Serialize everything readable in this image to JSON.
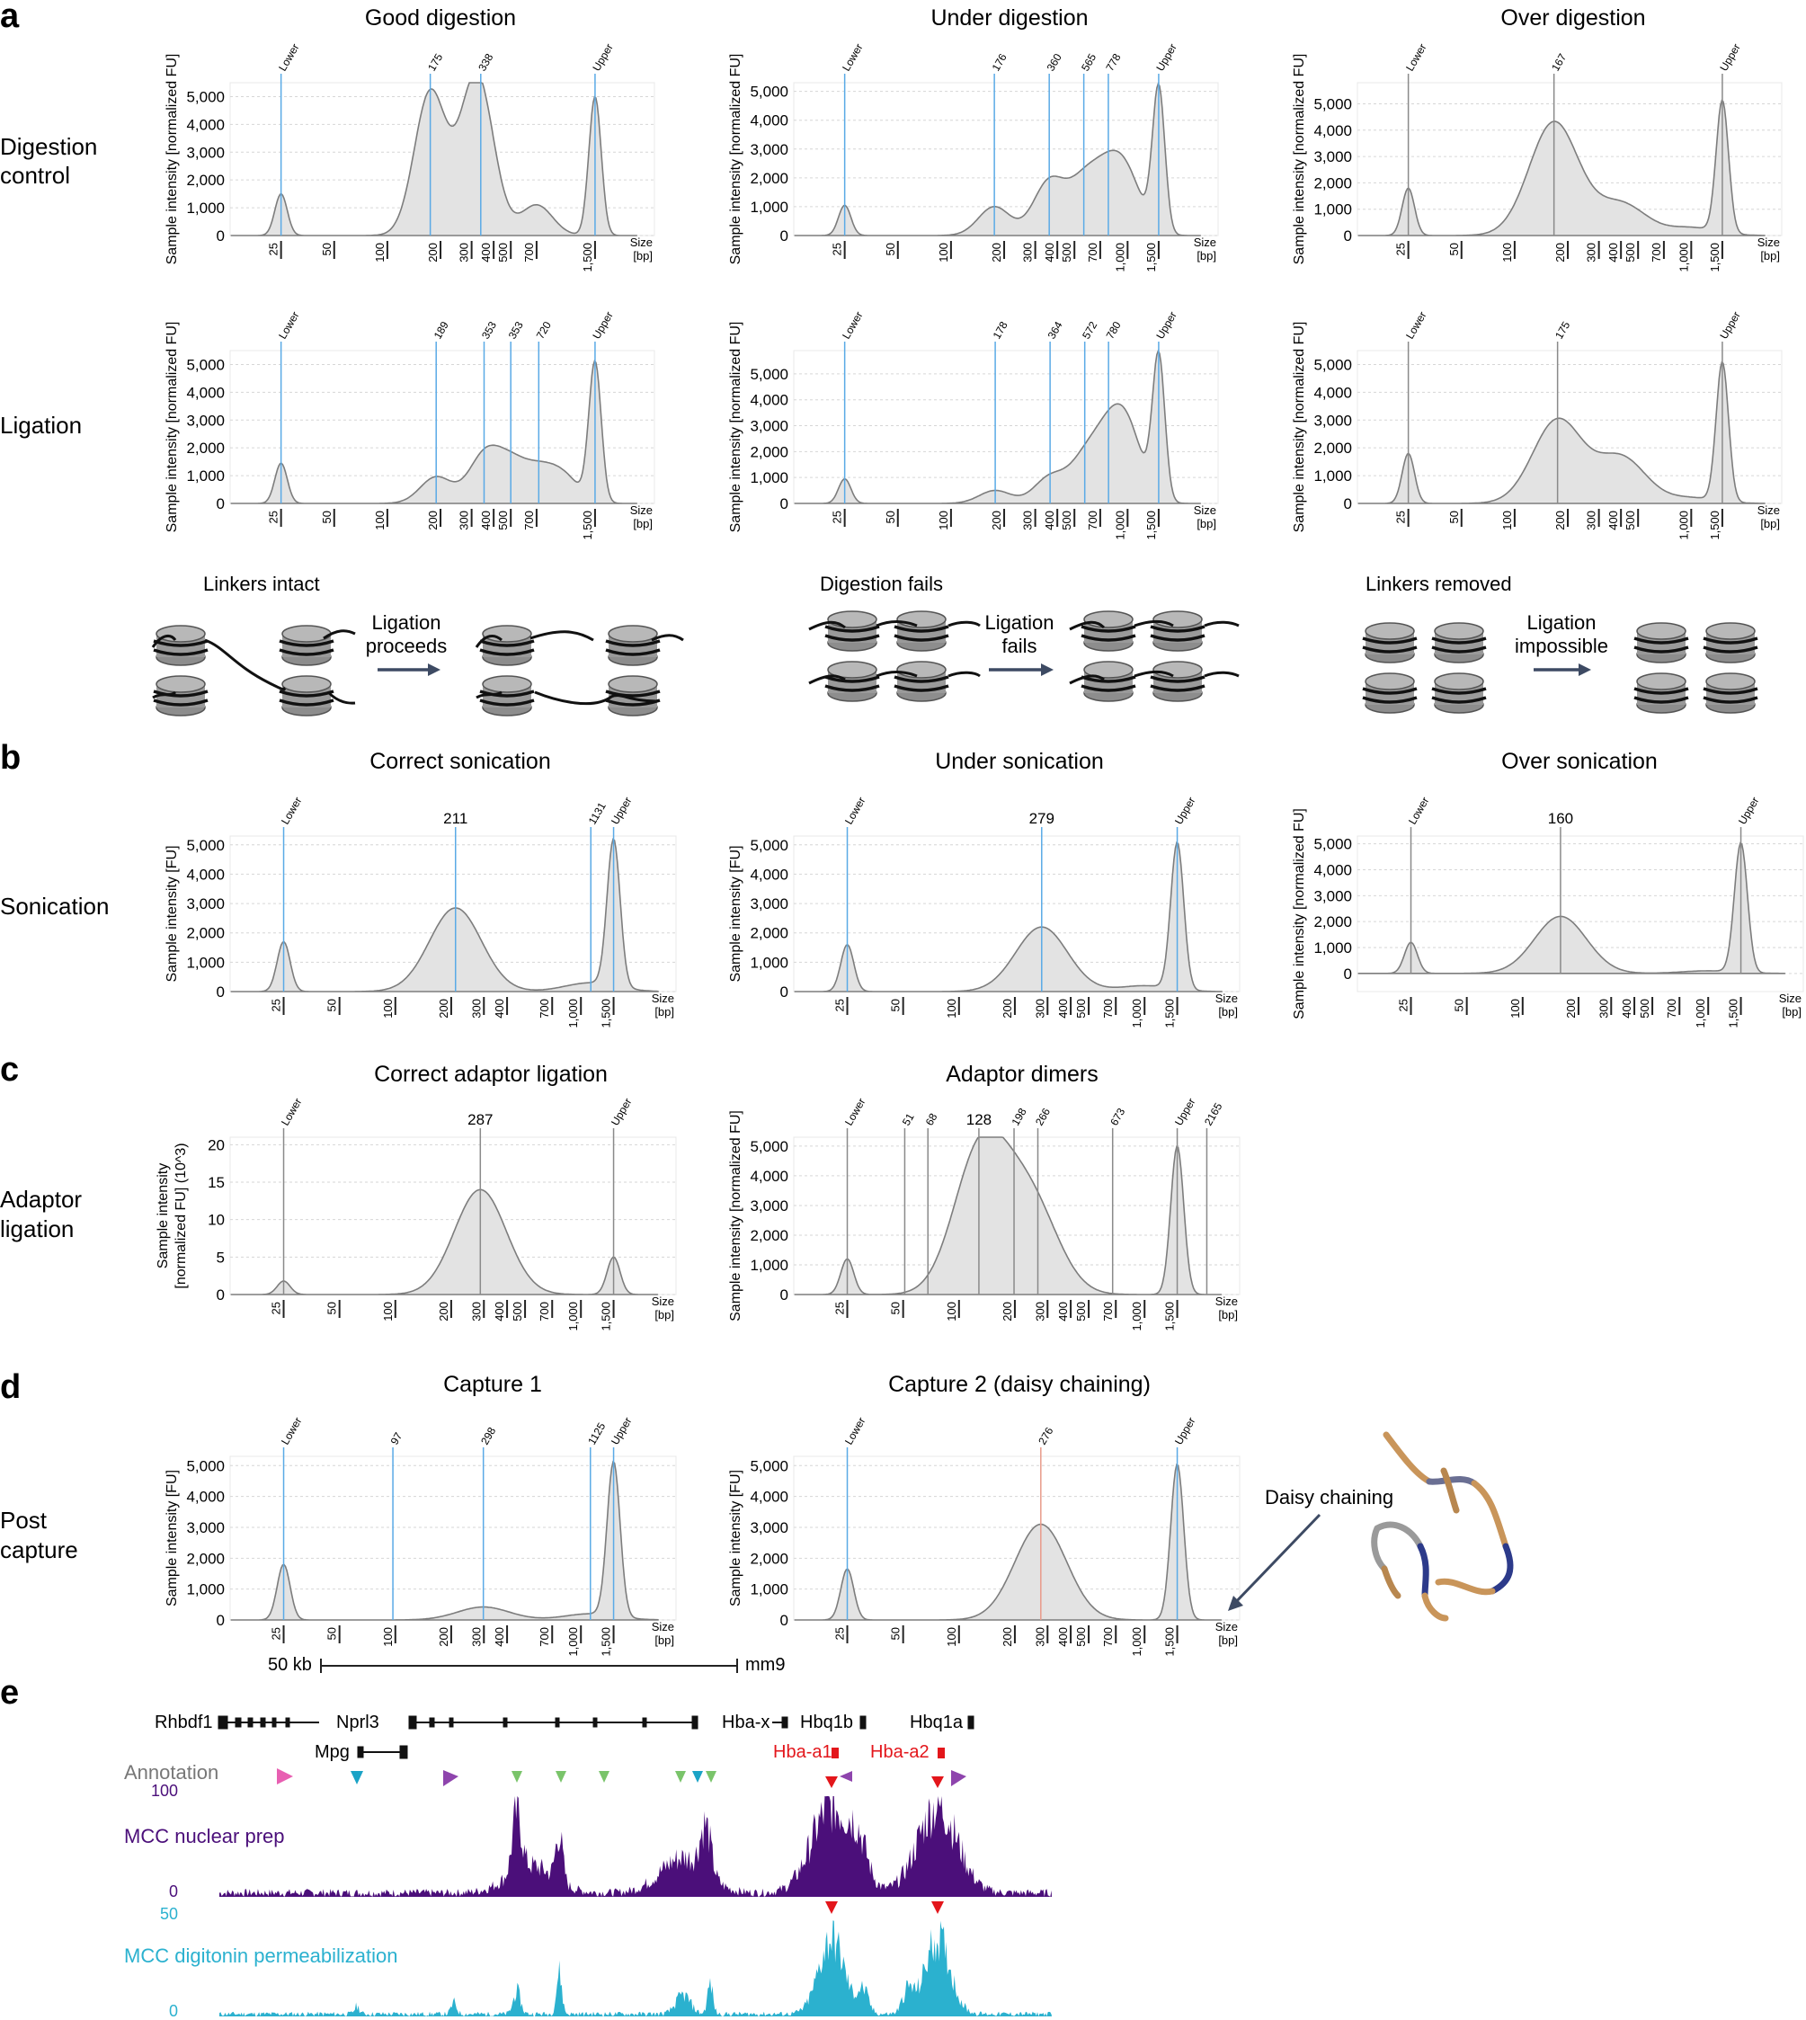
{
  "panel_letters": [
    "a",
    "b",
    "c",
    "d",
    "e"
  ],
  "row_labels": {
    "digestion": [
      "Digestion",
      "control"
    ],
    "ligation": [
      "Ligation"
    ],
    "sonication": [
      "Sonication"
    ],
    "adaptor": [
      "Adaptor",
      "ligation"
    ],
    "capture": [
      "Post",
      "capture"
    ]
  },
  "ylabels": {
    "norm": "Sample intensity [normalized FU]",
    "fu": "Sample intensity [FU]",
    "adaptor1": "Sample intensity",
    "adaptor2": "[normalized FU] (10^3)"
  },
  "size_label": [
    "Size",
    "[bp]"
  ],
  "schematics": [
    {
      "title": "Linkers intact",
      "arrow_label": [
        "Ligation",
        "proceeds"
      ]
    },
    {
      "title": "Digestion fails",
      "arrow_label": [
        "Ligation",
        "fails"
      ]
    },
    {
      "title": "Linkers removed",
      "arrow_label": [
        "Ligation",
        "impossible"
      ]
    }
  ],
  "daisy_label": "Daisy chaining",
  "colors": {
    "trace": "#7d7d7d",
    "fill": "#e3e3e3",
    "marker_blue": "#5aaae6",
    "marker_gray": "#8a8a8a",
    "marker_red": "#e89a8a",
    "purple": "#4b0f7a",
    "cyan": "#2bb1cf"
  },
  "chart_data": [
    {
      "id": "a1",
      "type": "area",
      "title": "Good digestion",
      "ylabel_key": "norm",
      "xticks": [
        "25",
        "50",
        "100",
        "200",
        "300",
        "400",
        "500",
        "700",
        "1,500"
      ],
      "yticks": [
        "0",
        "1,000",
        "2,000",
        "3,000",
        "4,000",
        "5,000"
      ],
      "ylim": [
        0,
        5500
      ],
      "marker_color": "blue",
      "markers": [
        {
          "x": 25,
          "label": "Lower"
        },
        {
          "x": 175,
          "label": "175"
        },
        {
          "x": 338,
          "label": "338"
        },
        {
          "x": 1500,
          "label": "Upper"
        }
      ],
      "peaks": [
        [
          25,
          1500
        ],
        [
          175,
          5150
        ],
        [
          300,
          2700
        ],
        [
          338,
          3350
        ],
        [
          700,
          1100
        ],
        [
          1500,
          5000
        ]
      ]
    },
    {
      "id": "a2",
      "type": "area",
      "title": "Under digestion",
      "ylabel_key": "norm",
      "xticks": [
        "25",
        "50",
        "100",
        "200",
        "300",
        "400",
        "500",
        "700",
        "1,000",
        "1,500"
      ],
      "yticks": [
        "0",
        "1,000",
        "2,000",
        "3,000",
        "4,000",
        "5,000"
      ],
      "ylim": [
        0,
        5300
      ],
      "marker_color": "blue",
      "markers": [
        {
          "x": 25,
          "label": "Lower"
        },
        {
          "x": 176,
          "label": "176"
        },
        {
          "x": 360,
          "label": "360"
        },
        {
          "x": 565,
          "label": "565"
        },
        {
          "x": 778,
          "label": "778"
        },
        {
          "x": 1500,
          "label": "Upper"
        }
      ],
      "peaks": [
        [
          25,
          1050
        ],
        [
          176,
          1000
        ],
        [
          360,
          1850
        ],
        [
          565,
          1650
        ],
        [
          778,
          1600
        ],
        [
          1000,
          1700
        ],
        [
          1500,
          5000
        ]
      ]
    },
    {
      "id": "a3",
      "type": "area",
      "title": "Over digestion",
      "ylabel_key": "norm",
      "xticks": [
        "25",
        "50",
        "100",
        "200",
        "300",
        "400",
        "500",
        "700",
        "1,000",
        "1,500"
      ],
      "yticks": [
        "0",
        "1,000",
        "2,000",
        "3,000",
        "4,000",
        "5,000"
      ],
      "ylim": [
        0,
        5800
      ],
      "marker_color": "gray",
      "markers": [
        {
          "x": 25,
          "label": "Lower"
        },
        {
          "x": 167,
          "label": "167"
        },
        {
          "x": 1500,
          "label": "Upper"
        }
      ],
      "peaks": [
        [
          25,
          1800
        ],
        [
          167,
          4300
        ],
        [
          400,
          1200
        ],
        [
          1000,
          300
        ],
        [
          1500,
          5000
        ]
      ]
    },
    {
      "id": "a4",
      "type": "area",
      "title": "",
      "ylabel_key": "norm",
      "xticks": [
        "25",
        "50",
        "100",
        "200",
        "300",
        "400",
        "500",
        "700",
        "1,500"
      ],
      "yticks": [
        "0",
        "1,000",
        "2,000",
        "3,000",
        "4,000",
        "5,000"
      ],
      "ylim": [
        0,
        5500
      ],
      "marker_color": "blue",
      "markers": [
        {
          "x": 25,
          "label": "Lower"
        },
        {
          "x": 189,
          "label": "189"
        },
        {
          "x": 353,
          "label": "353"
        },
        {
          "x": 500,
          "label": "353"
        },
        {
          "x": 720,
          "label": "720"
        },
        {
          "x": 1500,
          "label": "Upper"
        }
      ],
      "peaks": [
        [
          25,
          1450
        ],
        [
          189,
          950
        ],
        [
          353,
          1650
        ],
        [
          500,
          1250
        ],
        [
          720,
          1000
        ],
        [
          1000,
          900
        ],
        [
          1500,
          5000
        ]
      ]
    },
    {
      "id": "a5",
      "type": "area",
      "title": "",
      "ylabel_key": "norm",
      "xticks": [
        "25",
        "50",
        "100",
        "200",
        "300",
        "400",
        "500",
        "700",
        "1,000",
        "1,500"
      ],
      "yticks": [
        "0",
        "1,000",
        "2,000",
        "3,000",
        "4,000",
        "5,000"
      ],
      "ylim": [
        0,
        5900
      ],
      "marker_color": "blue",
      "markers": [
        {
          "x": 25,
          "label": "Lower"
        },
        {
          "x": 178,
          "label": "178"
        },
        {
          "x": 364,
          "label": "364"
        },
        {
          "x": 572,
          "label": "572"
        },
        {
          "x": 780,
          "label": "780"
        },
        {
          "x": 1500,
          "label": "Upper"
        }
      ],
      "peaks": [
        [
          25,
          950
        ],
        [
          178,
          500
        ],
        [
          364,
          1000
        ],
        [
          572,
          1500
        ],
        [
          780,
          1900
        ],
        [
          1000,
          2500
        ],
        [
          1500,
          5500
        ]
      ]
    },
    {
      "id": "a6",
      "type": "area",
      "title": "",
      "ylabel_key": "norm",
      "xticks": [
        "25",
        "50",
        "100",
        "200",
        "300",
        "400",
        "500",
        "1,000",
        "1,500"
      ],
      "yticks": [
        "0",
        "1,000",
        "2,000",
        "3,000",
        "4,000",
        "5,000"
      ],
      "ylim": [
        0,
        5500
      ],
      "marker_color": "gray",
      "markers": [
        {
          "x": 25,
          "label": "Lower"
        },
        {
          "x": 175,
          "label": "175"
        },
        {
          "x": 1500,
          "label": "Upper"
        }
      ],
      "peaks": [
        [
          25,
          1800
        ],
        [
          175,
          3000
        ],
        [
          400,
          1650
        ],
        [
          1000,
          200
        ],
        [
          1500,
          5000
        ]
      ]
    },
    {
      "id": "b1",
      "type": "area",
      "title": "Correct sonication",
      "ylabel_key": "fu",
      "xticks": [
        "25",
        "50",
        "100",
        "200",
        "300",
        "400",
        "700",
        "1,000",
        "1,500"
      ],
      "yticks": [
        "0",
        "1,000",
        "2,000",
        "3,000",
        "4,000",
        "5,000"
      ],
      "ylim": [
        0,
        5300
      ],
      "marker_color": "blue",
      "markers": [
        {
          "x": 25,
          "label": "Lower"
        },
        {
          "x": 211,
          "label": "211",
          "big": true
        },
        {
          "x": 1131,
          "label": "1131"
        },
        {
          "x": 1500,
          "label": "Upper"
        }
      ],
      "peaks": [
        [
          25,
          1700
        ],
        [
          211,
          2850
        ],
        [
          1131,
          300
        ],
        [
          1500,
          5000
        ]
      ]
    },
    {
      "id": "b2",
      "type": "area",
      "title": "Under sonication",
      "ylabel_key": "fu",
      "xticks": [
        "25",
        "50",
        "100",
        "200",
        "300",
        "400",
        "500",
        "700",
        "1,000",
        "1,500"
      ],
      "yticks": [
        "0",
        "1,000",
        "2,000",
        "3,000",
        "4,000",
        "5,000"
      ],
      "ylim": [
        0,
        5300
      ],
      "marker_color": "blue",
      "markers": [
        {
          "x": 25,
          "label": "Lower"
        },
        {
          "x": 279,
          "label": "279",
          "big": true
        },
        {
          "x": 1500,
          "label": "Upper"
        }
      ],
      "peaks": [
        [
          25,
          1600
        ],
        [
          279,
          2200
        ],
        [
          1000,
          200
        ],
        [
          1500,
          5000
        ]
      ]
    },
    {
      "id": "b3",
      "type": "area",
      "title": "Over sonication",
      "ylabel_key": "norm",
      "xticks": [
        "25",
        "50",
        "100",
        "200",
        "300",
        "400",
        "500",
        "700",
        "1,000",
        "1,500"
      ],
      "yticks": [
        "0",
        "1,000",
        "2,000",
        "3,000",
        "4,000",
        "5,000"
      ],
      "ylim": [
        -700,
        5300
      ],
      "marker_color": "gray",
      "markers": [
        {
          "x": 25,
          "label": "Lower"
        },
        {
          "x": 160,
          "label": "160",
          "big": true
        },
        {
          "x": 1500,
          "label": "Upper"
        }
      ],
      "peaks": [
        [
          25,
          1200
        ],
        [
          160,
          2200
        ],
        [
          1000,
          100
        ],
        [
          1500,
          5000
        ]
      ]
    },
    {
      "id": "c1",
      "type": "area",
      "title": "Correct adaptor ligation",
      "ylabel_key": "adaptor",
      "xticks": [
        "25",
        "50",
        "100",
        "200",
        "300",
        "400",
        "500",
        "700",
        "1,000",
        "1,500"
      ],
      "yticks": [
        "0",
        "5",
        "10",
        "15",
        "20"
      ],
      "ylim": [
        0,
        21
      ],
      "marker_color": "gray",
      "markers": [
        {
          "x": 25,
          "label": "Lower"
        },
        {
          "x": 287,
          "label": "287",
          "big": true
        },
        {
          "x": 1500,
          "label": "Upper"
        }
      ],
      "peaks": [
        [
          25,
          1.8
        ],
        [
          287,
          14
        ],
        [
          1500,
          5
        ]
      ]
    },
    {
      "id": "c2",
      "type": "area",
      "title": "Adaptor dimers",
      "ylabel_key": "norm",
      "xticks": [
        "25",
        "50",
        "100",
        "200",
        "300",
        "400",
        "500",
        "700",
        "1,000",
        "1,500"
      ],
      "yticks": [
        "0",
        "1,000",
        "2,000",
        "3,000",
        "4,000",
        "5,000"
      ],
      "ylim": [
        0,
        5300
      ],
      "marker_color": "gray",
      "markers": [
        {
          "x": 25,
          "label": "Lower"
        },
        {
          "x": 51,
          "label": "51"
        },
        {
          "x": 68,
          "label": "68"
        },
        {
          "x": 128,
          "label": "128",
          "big": true
        },
        {
          "x": 198,
          "label": "198"
        },
        {
          "x": 266,
          "label": "266"
        },
        {
          "x": 673,
          "label": "673"
        },
        {
          "x": 1500,
          "label": "Upper"
        },
        {
          "x": 2165,
          "label": "2165"
        }
      ],
      "peaks": [
        [
          25,
          1200
        ],
        [
          128,
          4500
        ],
        [
          198,
          1700
        ],
        [
          266,
          2000
        ],
        [
          1500,
          5000
        ]
      ]
    },
    {
      "id": "d1",
      "type": "area",
      "title": "Capture 1",
      "ylabel_key": "fu",
      "xticks": [
        "25",
        "50",
        "100",
        "200",
        "300",
        "400",
        "700",
        "1,000",
        "1,500"
      ],
      "yticks": [
        "0",
        "1,000",
        "2,000",
        "3,000",
        "4,000",
        "5,000"
      ],
      "ylim": [
        0,
        5300
      ],
      "marker_color": "blue",
      "markers": [
        {
          "x": 25,
          "label": "Lower"
        },
        {
          "x": 97,
          "label": "97"
        },
        {
          "x": 298,
          "label": "298"
        },
        {
          "x": 1125,
          "label": "1125"
        },
        {
          "x": 1500,
          "label": "Upper"
        }
      ],
      "peaks": [
        [
          25,
          1800
        ],
        [
          298,
          420
        ],
        [
          1125,
          200
        ],
        [
          1500,
          5000
        ]
      ]
    },
    {
      "id": "d2",
      "type": "area",
      "title": "Capture 2 (daisy chaining)",
      "ylabel_key": "fu",
      "xticks": [
        "25",
        "50",
        "100",
        "200",
        "300",
        "400",
        "500",
        "700",
        "1,000",
        "1,500"
      ],
      "yticks": [
        "0",
        "1,000",
        "2,000",
        "3,000",
        "4,000",
        "5,000"
      ],
      "ylim": [
        0,
        5300
      ],
      "marker_color": "blue",
      "markers": [
        {
          "x": 25,
          "label": "Lower"
        },
        {
          "x": 276,
          "label": "276",
          "red": true
        },
        {
          "x": 1500,
          "label": "Upper"
        }
      ],
      "peaks": [
        [
          25,
          1650
        ],
        [
          276,
          3100
        ],
        [
          1500,
          5050
        ]
      ]
    }
  ],
  "panel_e": {
    "scale_label": "50 kb",
    "assembly": "mm9",
    "genes_black": [
      "Rhbdf1",
      "Nprl3",
      "Mpg",
      "Hba-x",
      "Hbq1b",
      "Hbq1a"
    ],
    "genes_red": [
      "Hba-a1",
      "Hba-a2"
    ],
    "annotation_label": "Annotation",
    "tracks": [
      {
        "label": "MCC nuclear prep",
        "max": "100",
        "min": "0"
      },
      {
        "label": "MCC digitonin permeabilization",
        "max": "50",
        "min": "0"
      }
    ]
  }
}
